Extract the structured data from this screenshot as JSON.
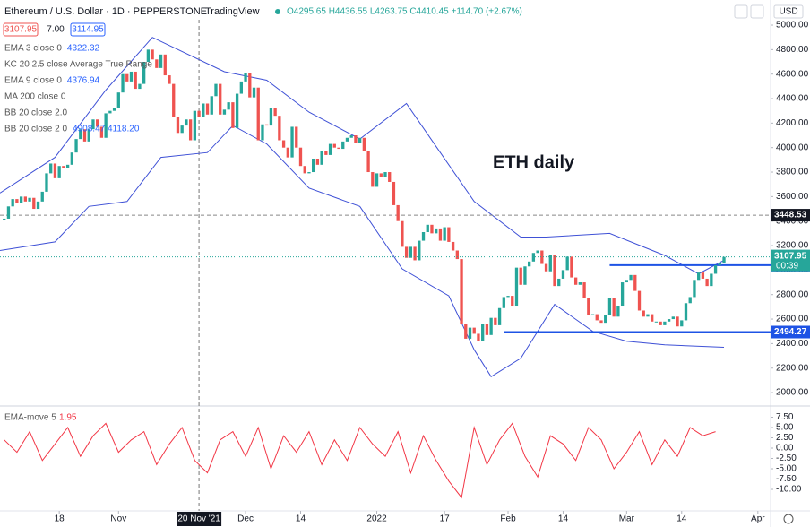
{
  "header": {
    "symbol": "Ethereum / U.S. Dollar · 1D · PEPPERSTONE",
    "brand": "TradingView",
    "ohlc": "O4295.65 H4436.55 L4263.75 C4410.45 +114.70 (+2.67%)",
    "bid": "3107.95",
    "spread": "7.00",
    "ask": "3114.95",
    "currency": "USD"
  },
  "legend": [
    {
      "name": "EMA 3 close 0",
      "value": "4322.32"
    },
    {
      "name": "KC 20 2.5 close Average True Range"
    },
    {
      "name": "EMA 9 close 0",
      "value": "4376.94"
    },
    {
      "name": "MA 200 close 0"
    },
    {
      "name": "BB 20 close 2.0"
    },
    {
      "name": "BB 20 close 2 0",
      "value": "4908.47  4118.20"
    }
  ],
  "chart_data": [
    {
      "type": "candlestick",
      "annotation": "ETH daily",
      "closes": [
        3420,
        3520,
        3580,
        3550,
        3600,
        3560,
        3590,
        3500,
        3560,
        3640,
        3790,
        3870,
        3750,
        3850,
        3830,
        3860,
        3960,
        4070,
        4150,
        4050,
        4150,
        4230,
        4170,
        4080,
        4280,
        4300,
        4320,
        4450,
        4600,
        4540,
        4620,
        4480,
        4520,
        4700,
        4800,
        4720,
        4650,
        4760,
        4590,
        4520,
        4250,
        4120,
        4180,
        4230,
        4060,
        4300,
        4250,
        4360,
        4270,
        4420,
        4520,
        4270,
        4310,
        4370,
        4160,
        4440,
        4540,
        4610,
        4410,
        4490,
        4060,
        4190,
        4180,
        4320,
        4260,
        4060,
        4000,
        3920,
        4170,
        4000,
        3850,
        3790,
        3800,
        3910,
        3860,
        3970,
        3940,
        4030,
        4000,
        3990,
        4050,
        4080,
        4100,
        4040,
        4080,
        3970,
        3800,
        3680,
        3790,
        3760,
        3800,
        3720,
        3530,
        3400,
        3190,
        3100,
        3190,
        3080,
        3240,
        3310,
        3370,
        3300,
        3340,
        3240,
        3350,
        3230,
        3160,
        3090,
        2560,
        2440,
        2530,
        2480,
        2420,
        2560,
        2470,
        2610,
        2550,
        2690,
        2780,
        2790,
        2710,
        3020,
        2880,
        3030,
        3070,
        3140,
        3160,
        3050,
        2990,
        3120,
        2870,
        2930,
        3000,
        3110,
        2940,
        2880,
        2900,
        2770,
        2630,
        2640,
        2590,
        2570,
        2630,
        2770,
        2620,
        2710,
        2900,
        2920,
        2960,
        2830,
        2670,
        2620,
        2640,
        2580,
        2580,
        2550,
        2580,
        2600,
        2620,
        2540,
        2590,
        2730,
        2780,
        2920,
        2980,
        2930,
        2870,
        2970,
        3040,
        3060,
        3107.95
      ],
      "up_color": "#26a69a",
      "down_color": "#ef5350",
      "series": [
        {
          "name": "BB upper",
          "color": "#3f51d6",
          "x": [
            -1,
            12,
            24,
            35,
            52,
            62,
            72,
            84,
            95,
            103,
            111,
            122,
            128,
            143,
            156,
            164,
            170
          ],
          "values": [
            3630,
            3920,
            4470,
            4900,
            4620,
            4550,
            4290,
            4070,
            4360,
            3960,
            3560,
            3270,
            3270,
            3300,
            3120,
            2970,
            3080
          ]
        },
        {
          "name": "BB lower",
          "color": "#3f51d6",
          "x": [
            -1,
            12,
            20,
            29,
            37,
            48,
            54,
            62,
            72,
            84,
            94,
            105,
            111,
            115,
            122,
            130,
            139,
            147,
            156,
            170
          ],
          "values": [
            3160,
            3230,
            3520,
            3560,
            3920,
            3960,
            4180,
            4030,
            3670,
            3520,
            3010,
            2790,
            2350,
            2130,
            2280,
            2720,
            2500,
            2420,
            2390,
            2370
          ]
        }
      ],
      "hlines": [
        {
          "value": 3448.53,
          "style": "dashed",
          "color": "#888888",
          "start": -1
        },
        {
          "value": 3040.34,
          "style": "solid",
          "color": "#1e53e5",
          "start": 143
        },
        {
          "value": 2494.27,
          "style": "solid",
          "color": "#1e53e5",
          "start": 118
        }
      ],
      "last_price": 3107.95,
      "countdown": "00:39",
      "crosshair": {
        "value": 46,
        "label": "20 Nov '21"
      },
      "xlim": [
        -1,
        181
      ],
      "ylim": [
        1898,
        5044
      ],
      "yticks": [
        {
          "value": 2000,
          "label": "2000.00"
        },
        {
          "value": 2200,
          "label": "2200.00"
        },
        {
          "value": 2400,
          "label": "2400.00"
        },
        {
          "value": 2600,
          "label": "2600.00"
        },
        {
          "value": 2800,
          "label": "2800.00"
        },
        {
          "value": 3000,
          "label": "3000.00"
        },
        {
          "value": 3200,
          "label": "3200.00"
        },
        {
          "value": 3400,
          "label": "3400.00"
        },
        {
          "value": 3600,
          "label": "3600.00"
        },
        {
          "value": 3800,
          "label": "3800.00"
        },
        {
          "value": 4000,
          "label": "4000.00"
        },
        {
          "value": 4200,
          "label": "4200.00"
        },
        {
          "value": 4400,
          "label": "4400.00"
        },
        {
          "value": 4600,
          "label": "4600.00"
        },
        {
          "value": 4800,
          "label": "4800.00"
        },
        {
          "value": 5000,
          "label": "5000.00"
        }
      ],
      "xticks": [
        {
          "value": 13,
          "label": "18"
        },
        {
          "value": 27,
          "label": "Nov"
        },
        {
          "value": 57,
          "label": "Dec"
        },
        {
          "value": 70,
          "label": "14"
        },
        {
          "value": 88,
          "label": "2022"
        },
        {
          "value": 104,
          "label": "17"
        },
        {
          "value": 119,
          "label": "Feb"
        },
        {
          "value": 132,
          "label": "14"
        },
        {
          "value": 147,
          "label": "Mar"
        },
        {
          "value": 160,
          "label": "14"
        },
        {
          "value": 178,
          "label": "Apr"
        }
      ]
    },
    {
      "type": "line",
      "title": "EMA-move 5",
      "title_value": "1.95",
      "series": [
        {
          "name": "EMA-move",
          "color": "#f23645",
          "x": [
            0,
            3,
            6,
            9,
            12,
            15,
            18,
            21,
            24,
            27,
            30,
            33,
            36,
            39,
            42,
            45,
            48,
            51,
            54,
            57,
            60,
            63,
            66,
            69,
            72,
            75,
            78,
            81,
            84,
            87,
            90,
            93,
            96,
            99,
            102,
            105,
            108,
            111,
            114,
            117,
            120,
            123,
            126,
            129,
            132,
            135,
            138,
            141,
            144,
            147,
            150,
            153,
            156,
            159,
            162,
            165,
            168
          ],
          "values": [
            2,
            -1,
            4,
            -3,
            1,
            5,
            -2,
            3,
            6,
            -1,
            2,
            4,
            -4,
            1,
            5,
            -3,
            -6,
            2,
            4,
            -2,
            5,
            -5,
            3,
            -1,
            4,
            -4,
            2,
            -3,
            5,
            1,
            -2,
            4,
            -6,
            3,
            -3,
            -8,
            -12,
            5,
            -4,
            2,
            6,
            -2,
            -7,
            3,
            1,
            -3,
            5,
            2,
            -5,
            -1,
            4,
            -4,
            2,
            -2,
            5,
            3,
            4
          ]
        }
      ],
      "xlim": [
        -1,
        181
      ],
      "ylim": [
        -15,
        10
      ],
      "yticks": [
        {
          "value": 7.5,
          "label": "7.50"
        },
        {
          "value": 5,
          "label": "5.00"
        },
        {
          "value": 2.5,
          "label": "2.50"
        },
        {
          "value": 0,
          "label": "0.00"
        },
        {
          "value": -2.5,
          "label": "-2.50"
        },
        {
          "value": -5,
          "label": "-5.00"
        },
        {
          "value": -7.5,
          "label": "-7.50"
        },
        {
          "value": -10,
          "label": "-10.00"
        }
      ]
    }
  ]
}
